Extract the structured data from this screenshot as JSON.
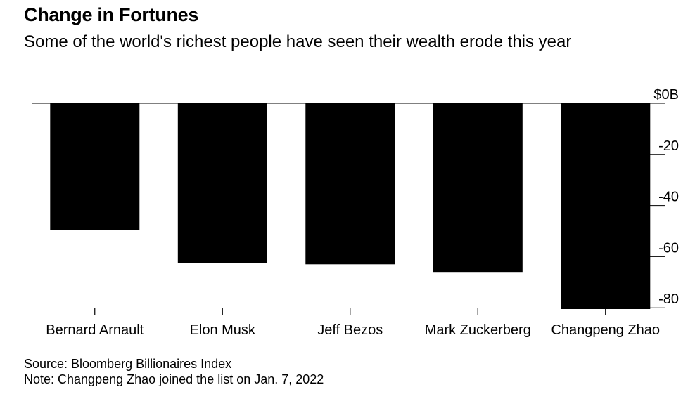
{
  "title": "Change in Fortunes",
  "subtitle": "Some of the world's richest people have seen their wealth erode this year",
  "source": "Source: Bloomberg Billionaires Index",
  "note": "Note: Changpeng Zhao joined the list on Jan. 7, 2022",
  "colors": {
    "bar": "#000000",
    "axis": "#000000",
    "text": "#000000"
  },
  "chart_data": {
    "type": "bar",
    "categories": [
      "Bernard Arnault",
      "Elon Musk",
      "Jeff Bezos",
      "Mark Zuckerberg",
      "Changpeng Zhao"
    ],
    "values": [
      -49.5,
      -62.5,
      -63.0,
      -66.0,
      -80.5
    ],
    "ylim": [
      -80.5,
      0
    ],
    "yticks": [
      {
        "value": 0,
        "label": "$0B"
      },
      {
        "value": -20,
        "label": "-20"
      },
      {
        "value": -40,
        "label": "-40"
      },
      {
        "value": -60,
        "label": "-60"
      },
      {
        "value": -80,
        "label": "-80"
      }
    ],
    "xlabel": "",
    "ylabel": "",
    "grid": false,
    "legend": "none"
  }
}
